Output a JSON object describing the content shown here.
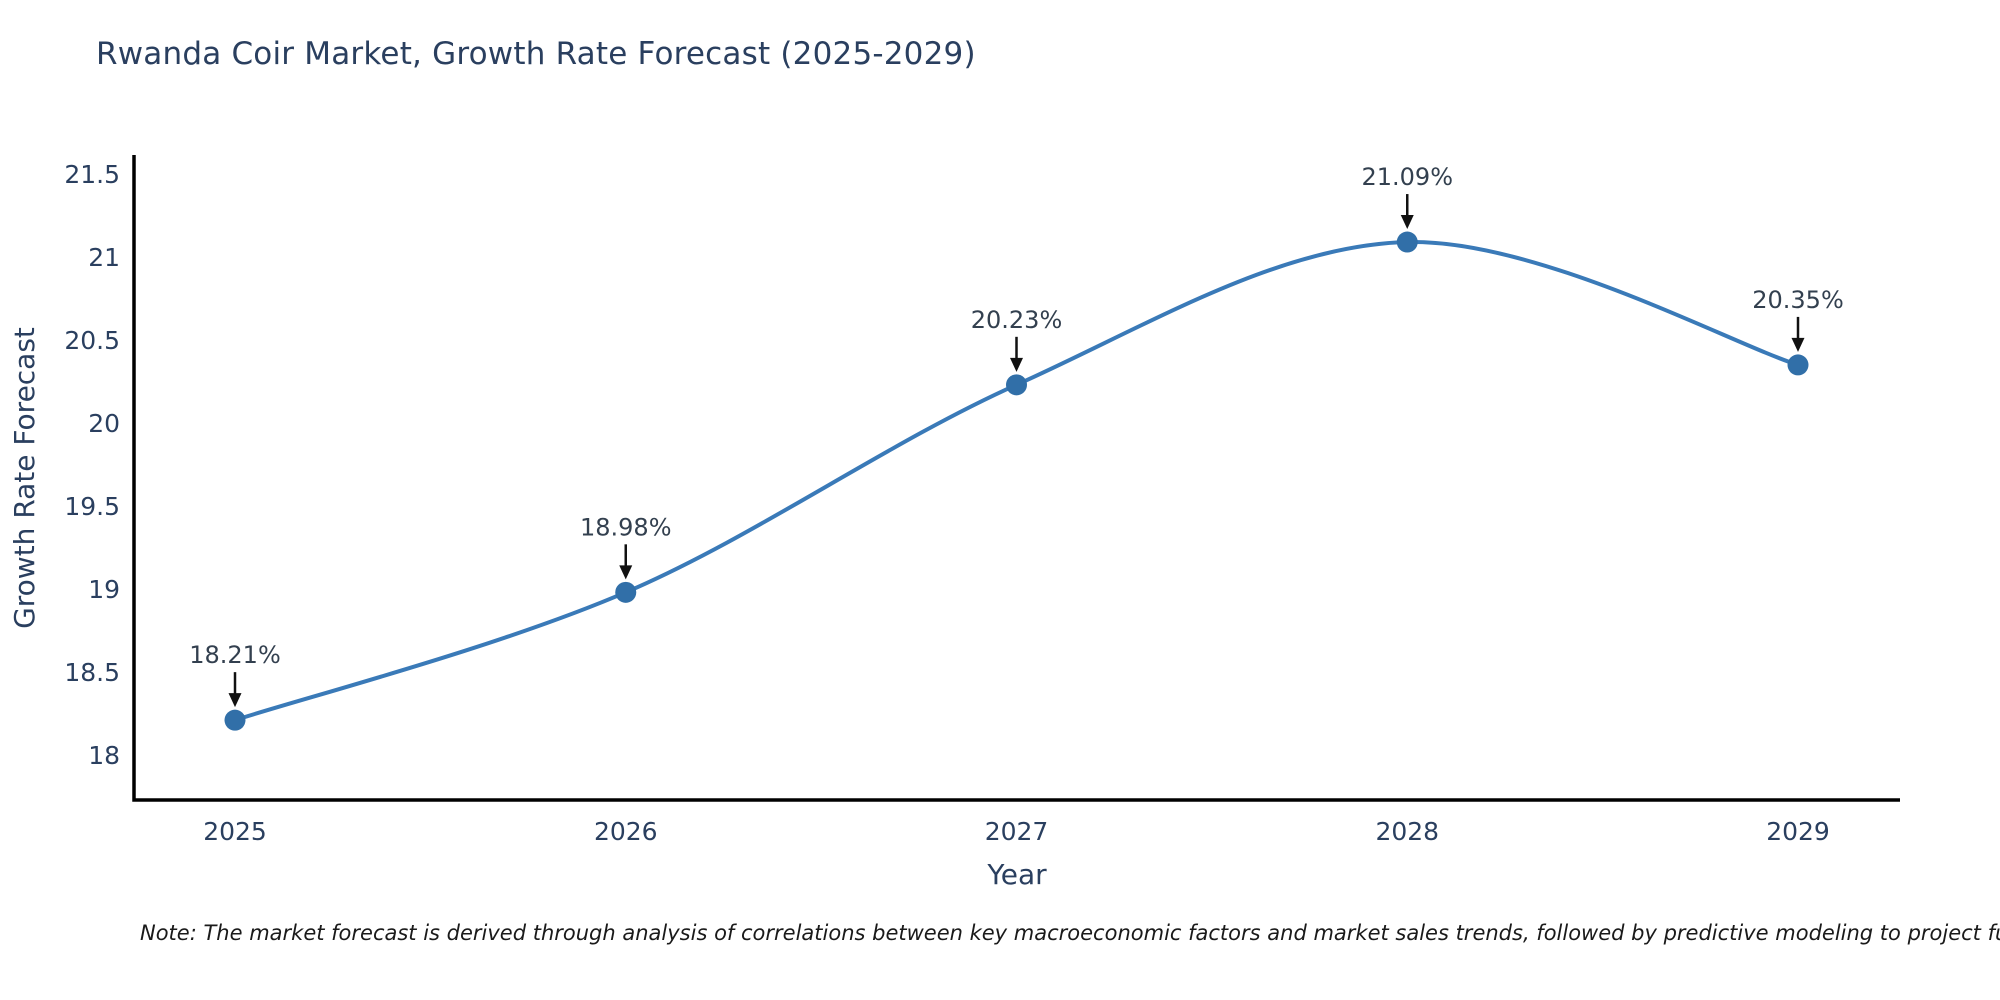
{
  "note": "Note: The market forecast is derived through analysis of correlations between key macroeconomic factors and market sales trends, followed by predictive modeling to project future sal",
  "colors": {
    "line": "#3a7ab8",
    "marker": "#316fa8",
    "text": "#2a3f5f",
    "axis": "#000000",
    "annotation_text": "#33404f",
    "arrow": "#111111"
  },
  "chart_data": {
    "type": "line",
    "title": "Rwanda Coir Market, Growth Rate Forecast (2025-2029)",
    "x": [
      2025,
      2026,
      2027,
      2028,
      2029
    ],
    "values": [
      18.21,
      18.98,
      20.23,
      21.09,
      20.35
    ],
    "point_labels": [
      "18.21%",
      "18.98%",
      "20.23%",
      "21.09%",
      "20.35%"
    ],
    "xlabel": "Year",
    "ylabel": "Growth Rate Forecast",
    "yticks": [
      "18",
      "18.5",
      "19",
      "19.5",
      "20",
      "20.5",
      "21",
      "21.5"
    ],
    "ylim": [
      17.73,
      21.6
    ],
    "grid": false,
    "legend": "none",
    "line_shape": "spline",
    "marker": "circle",
    "annotations_arrow": true
  }
}
